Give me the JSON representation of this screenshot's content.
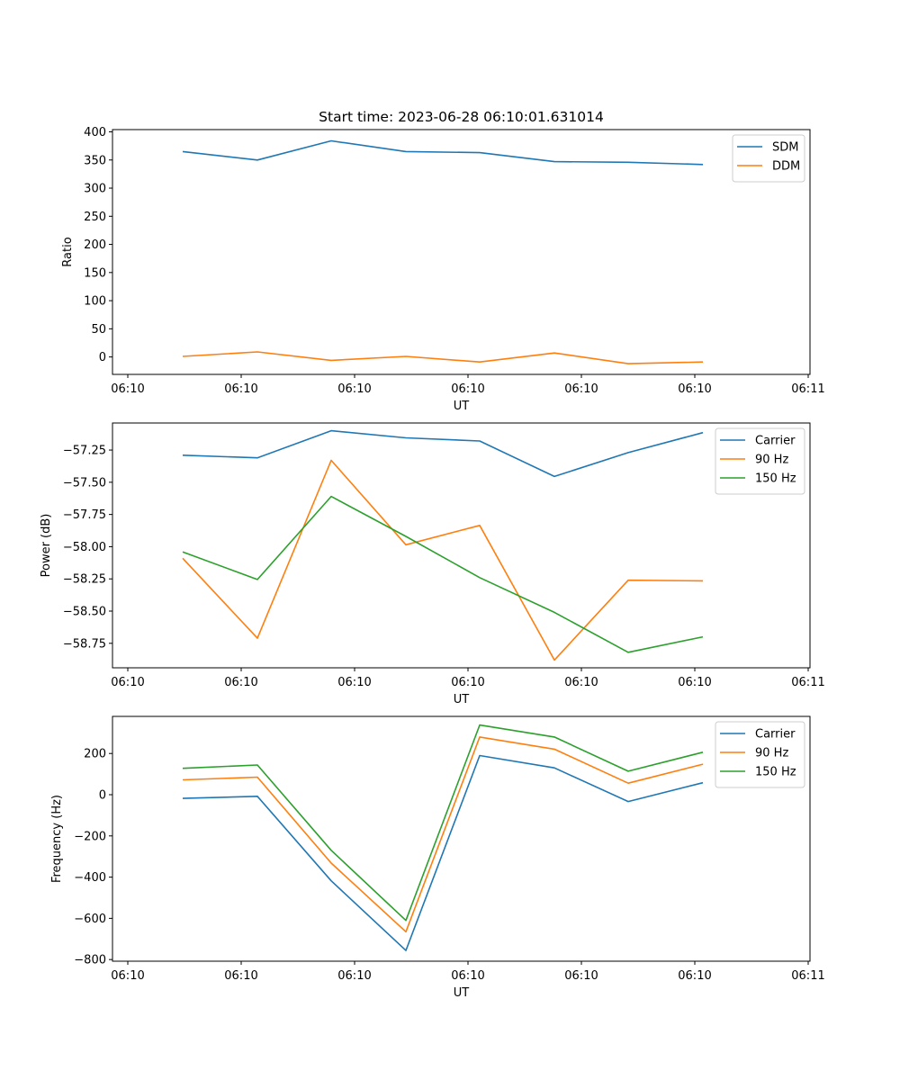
{
  "figure": {
    "title": "Start time: 2023-06-28 06:10:01.631014"
  },
  "chart_data": [
    {
      "type": "line",
      "xlabel": "UT",
      "ylabel": "Ratio",
      "x_tick_labels": [
        "06:10",
        "06:10",
        "06:10",
        "06:10",
        "06:10",
        "06:10",
        "06:11"
      ],
      "y_ticks": [
        0,
        50,
        100,
        150,
        200,
        250,
        300,
        350,
        400
      ],
      "ylim": [
        -31,
        404
      ],
      "legend_position": "upper right",
      "series": [
        {
          "name": "SDM",
          "color": "#1f77b4",
          "values": [
            365,
            350,
            384,
            365,
            363,
            347,
            346,
            342
          ]
        },
        {
          "name": "DDM",
          "color": "#ff7f0e",
          "values": [
            1,
            9,
            -6,
            1,
            -9,
            7,
            -12,
            -9
          ]
        }
      ]
    },
    {
      "type": "line",
      "xlabel": "UT",
      "ylabel": "Power (dB)",
      "x_tick_labels": [
        "06:10",
        "06:10",
        "06:10",
        "06:10",
        "06:10",
        "06:10",
        "06:11"
      ],
      "y_ticks": [
        -57.25,
        -57.5,
        -57.75,
        -58.0,
        -58.25,
        -58.5,
        -58.75
      ],
      "y_tick_labels": [
        "−57.25",
        "−57.50",
        "−57.75",
        "−58.00",
        "−58.25",
        "−58.50",
        "−58.75"
      ],
      "ylim": [
        -58.94,
        -57.04
      ],
      "legend_position": "upper right",
      "series": [
        {
          "name": "Carrier",
          "color": "#1f77b4",
          "values": [
            -57.29,
            -57.31,
            -57.1,
            -57.155,
            -57.18,
            -57.455,
            -57.27,
            -57.115
          ]
        },
        {
          "name": "90 Hz",
          "color": "#ff7f0e",
          "values": [
            -58.09,
            -58.71,
            -57.33,
            -57.985,
            -57.835,
            -58.88,
            -58.26,
            -58.265
          ]
        },
        {
          "name": "150 Hz",
          "color": "#2ca02c",
          "values": [
            -58.04,
            -58.255,
            -57.61,
            -57.92,
            -58.24,
            -58.51,
            -58.82,
            -58.7
          ]
        }
      ]
    },
    {
      "type": "line",
      "xlabel": "UT",
      "ylabel": "Frequency (Hz)",
      "x_tick_labels": [
        "06:10",
        "06:10",
        "06:10",
        "06:10",
        "06:10",
        "06:10",
        "06:11"
      ],
      "y_ticks": [
        200,
        0,
        -200,
        -400,
        -600,
        -800
      ],
      "y_tick_labels": [
        "200",
        "0",
        "−200",
        "−400",
        "−600",
        "−800"
      ],
      "ylim": [
        -808,
        380
      ],
      "legend_position": "upper right",
      "series": [
        {
          "name": "Carrier",
          "color": "#1f77b4",
          "values": [
            -18,
            -8,
            -418,
            -756,
            190,
            130,
            -33,
            58
          ]
        },
        {
          "name": "90 Hz",
          "color": "#ff7f0e",
          "values": [
            72,
            85,
            -332,
            -665,
            280,
            221,
            56,
            148
          ]
        },
        {
          "name": "150 Hz",
          "color": "#2ca02c",
          "values": [
            128,
            144,
            -270,
            -610,
            338,
            280,
            114,
            206
          ]
        }
      ]
    }
  ]
}
